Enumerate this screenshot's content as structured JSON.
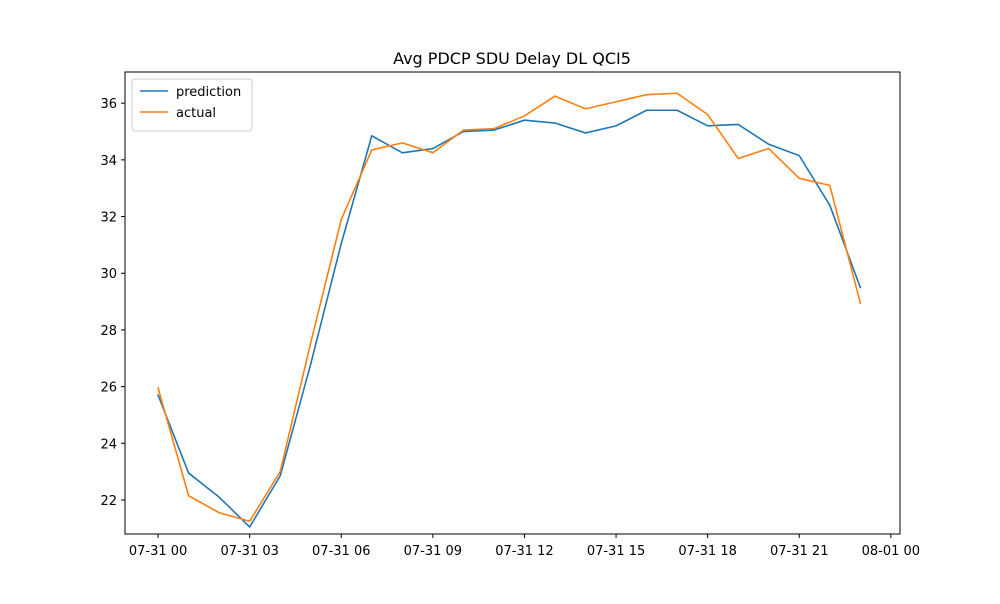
{
  "chart_data": {
    "type": "line",
    "title": "Avg PDCP SDU Delay DL QCI5",
    "xlabel": "",
    "ylabel": "",
    "x": [
      "07-31 00:00",
      "07-31 01:00",
      "07-31 02:00",
      "07-31 03:00",
      "07-31 04:00",
      "07-31 05:00",
      "07-31 06:00",
      "07-31 07:00",
      "07-31 08:00",
      "07-31 09:00",
      "07-31 10:00",
      "07-31 11:00",
      "07-31 12:00",
      "07-31 13:00",
      "07-31 14:00",
      "07-31 15:00",
      "07-31 16:00",
      "07-31 17:00",
      "07-31 18:00",
      "07-31 19:00",
      "07-31 20:00",
      "07-31 21:00",
      "07-31 22:00",
      "07-31 23:00"
    ],
    "xlim": [
      "07-30 22:55",
      "08-01 00:18"
    ],
    "x_ticks": [
      {
        "value": "07-31 00:00",
        "label": "07-31 00"
      },
      {
        "value": "07-31 03:00",
        "label": "07-31 03"
      },
      {
        "value": "07-31 06:00",
        "label": "07-31 06"
      },
      {
        "value": "07-31 09:00",
        "label": "07-31 09"
      },
      {
        "value": "07-31 12:00",
        "label": "07-31 12"
      },
      {
        "value": "07-31 15:00",
        "label": "07-31 15"
      },
      {
        "value": "07-31 18:00",
        "label": "07-31 18"
      },
      {
        "value": "07-31 21:00",
        "label": "07-31 21"
      },
      {
        "value": "08-01 00:00",
        "label": "08-01 00"
      }
    ],
    "ylim": [
      20.8,
      37.1
    ],
    "y_ticks": [
      22,
      24,
      26,
      28,
      30,
      32,
      34,
      36
    ],
    "grid": false,
    "legend_position": "top-left",
    "series": [
      {
        "name": "prediction",
        "color": "#1f77b4",
        "values": [
          25.7,
          22.95,
          22.1,
          21.05,
          22.85,
          26.8,
          31.05,
          34.85,
          34.25,
          34.4,
          35.0,
          35.05,
          35.4,
          35.3,
          34.95,
          35.2,
          35.75,
          35.75,
          35.2,
          35.25,
          34.55,
          34.15,
          32.4,
          29.5
        ]
      },
      {
        "name": "actual",
        "color": "#ff7f0e",
        "values": [
          25.95,
          22.15,
          21.55,
          21.25,
          23.0,
          27.55,
          31.9,
          34.35,
          34.6,
          34.25,
          35.05,
          35.1,
          35.55,
          36.25,
          35.8,
          36.05,
          36.3,
          36.35,
          35.6,
          34.05,
          34.4,
          33.35,
          33.1,
          28.95
        ]
      }
    ]
  }
}
